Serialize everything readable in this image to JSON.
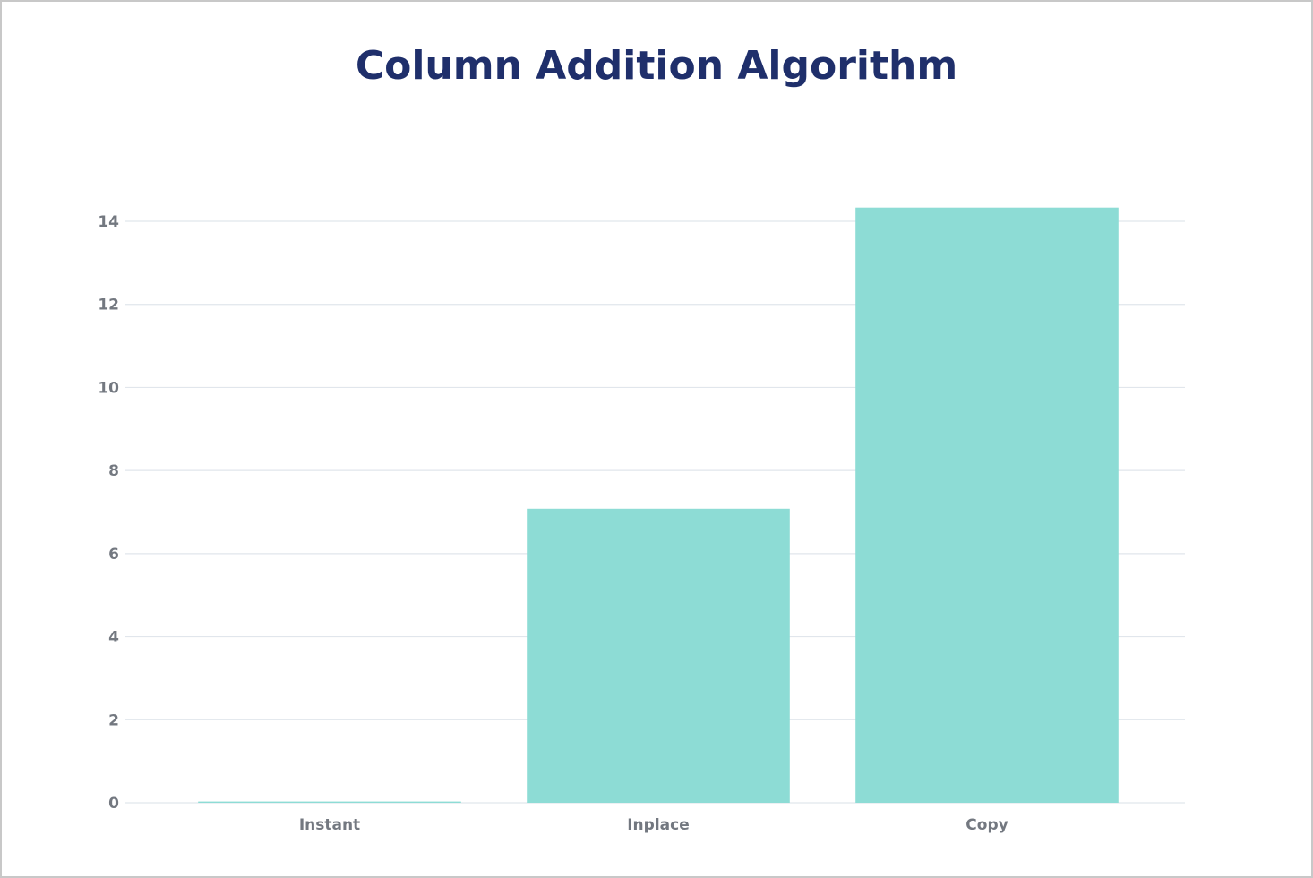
{
  "chart_data": {
    "type": "bar",
    "title": "Column Addition Algorithm",
    "categories": [
      "Instant",
      "Inplace",
      "Copy"
    ],
    "values": [
      0.03,
      7.08,
      14.33
    ],
    "color": "#8ddcd5",
    "ylim": [
      0,
      15
    ],
    "yticks": [
      0,
      2,
      4,
      6,
      8,
      10,
      12,
      14
    ],
    "grid": true
  }
}
